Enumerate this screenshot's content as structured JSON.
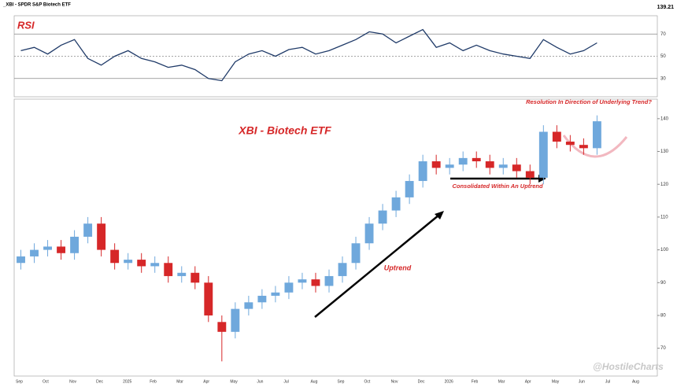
{
  "header": {
    "title": "_XBI - SPDR S&P Biotech ETF",
    "last": "139.21"
  },
  "annotations": {
    "rsi": "RSI",
    "main": "XBI - Biotech ETF",
    "resolution": "Resolution In Direction of Underlying Trend?",
    "consolidated": "Consolidated Within An Uptrend",
    "uptrend": "Uptrend",
    "watermark": "@HostileCharts"
  },
  "chart_data": [
    {
      "type": "candlestick",
      "title": "XBI - Biotech ETF",
      "categories": [
        "Sep",
        null,
        "Oct",
        null,
        "Nov",
        null,
        "Dec",
        null,
        "2025",
        null,
        "Feb",
        null,
        "Mar",
        null,
        "Apr",
        null,
        "May",
        null,
        "Jun",
        null,
        "Jul",
        null,
        "Aug",
        null,
        "Sep",
        null,
        "Oct",
        null,
        "Nov",
        null,
        "Dec",
        null,
        "2026",
        null,
        "Feb",
        null,
        "Mar",
        null,
        "Apr",
        null,
        "May",
        null,
        "Jun",
        null,
        "Jul",
        null,
        "Aug",
        null
      ],
      "open": [
        96,
        98,
        100,
        101,
        99,
        104,
        108,
        100,
        96,
        97,
        95,
        96,
        92,
        93,
        90,
        78,
        75,
        82,
        84,
        86,
        87,
        90,
        91,
        89,
        92,
        96,
        102,
        108,
        112,
        116,
        121,
        127,
        125,
        126,
        128,
        127,
        125,
        126,
        124,
        122,
        136,
        133,
        132,
        131,
        null,
        null,
        null,
        null
      ],
      "high": [
        100,
        102,
        103,
        103,
        106,
        110,
        110,
        102,
        99,
        99,
        98,
        98,
        95,
        95,
        92,
        80,
        84,
        86,
        88,
        89,
        92,
        93,
        93,
        94,
        98,
        104,
        110,
        114,
        118,
        123,
        129,
        129,
        128,
        130,
        130,
        129,
        128,
        128,
        126,
        138,
        138,
        135,
        134,
        141,
        null,
        null,
        null,
        null
      ],
      "low": [
        94,
        96,
        98,
        97,
        97,
        102,
        98,
        94,
        94,
        93,
        93,
        90,
        90,
        88,
        78,
        66,
        73,
        80,
        82,
        84,
        85,
        88,
        87,
        87,
        90,
        94,
        100,
        106,
        110,
        114,
        119,
        123,
        123,
        124,
        125,
        123,
        123,
        122,
        120,
        120,
        131,
        130,
        129,
        129,
        null,
        null,
        null,
        null
      ],
      "close": [
        98,
        100,
        101,
        99,
        104,
        108,
        100,
        96,
        97,
        95,
        96,
        92,
        93,
        90,
        80,
        75,
        82,
        84,
        86,
        87,
        90,
        91,
        89,
        92,
        96,
        102,
        108,
        112,
        116,
        121,
        127,
        125,
        126,
        128,
        127,
        125,
        126,
        124,
        122,
        136,
        133,
        132,
        131,
        139.21,
        null,
        null,
        null,
        null
      ],
      "up_color": "#6fa8dc",
      "down_color": "#d62728",
      "ylim": [
        62,
        145
      ],
      "yticks": [
        70,
        80,
        90,
        100,
        110,
        120,
        130,
        140
      ]
    },
    {
      "type": "line",
      "title": "RSI",
      "color": "#1f3a68",
      "values": [
        55,
        58,
        52,
        60,
        65,
        48,
        42,
        50,
        55,
        48,
        45,
        40,
        42,
        38,
        30,
        28,
        45,
        52,
        55,
        50,
        56,
        58,
        52,
        55,
        60,
        65,
        72,
        70,
        62,
        68,
        74,
        58,
        62,
        55,
        60,
        55,
        52,
        50,
        48,
        65,
        58,
        52,
        55,
        62,
        null,
        null,
        null,
        null
      ],
      "ylim": [
        15,
        85
      ],
      "yticks": [
        30,
        50,
        70
      ]
    }
  ]
}
